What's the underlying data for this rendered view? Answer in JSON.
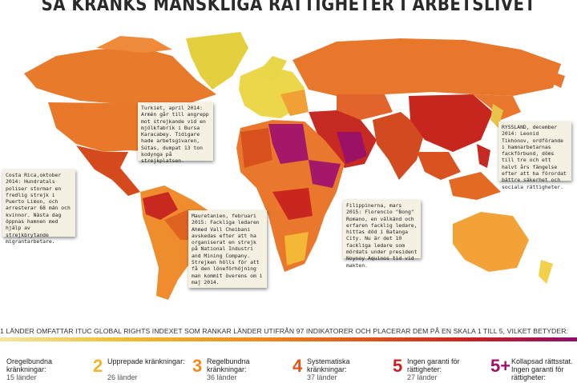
{
  "header": {
    "title": "SÅ KRÄNKS MÄNSKLIGA RÄTTIGHETER I ARBETSLIVET"
  },
  "annotations": [
    {
      "text": "Turkiet, april 2014: Armén går till angrepp mot strejkande vid en mjölkfabrik i Bursa Karacabey. Tidigare hade arbetsgivaren, Sütas, dumpat 13 ton kodynga på strejkplatsen."
    },
    {
      "text": "Costa Rica,oktober 2014: Hundratals poliser stormar en fredlig strejk i Puerto Limon, och arresterar 68 män och kvinnor. Nästa dag öppnas hamnen med hjälp av strejkbrytande migrantar­betare."
    },
    {
      "text": "Mauretanien, februari 2015: Fackliga ledaren Ahmed Vall Cheibani avskedas efter att ha organiserat en strejk på National Industri and Mining Company. Strejken hölls för att få den löneförhöjning man kommit överens om i maj 2014."
    },
    {
      "text": "Filippinerna, mars 2015: Florencio \"Bong\" Romano, en välkänd och erfaren facklig ledare, hittas död i Batanga City. Nu är det 10 fackliga ledare som mördats under president Noynoy Aquinos tid vid makten."
    },
    {
      "text": "RYSSLAND, december 2014: Leonid Tikhonov, ordförande i hamnarbetarnas fackförbund, döms till tre och ett halvt års fängelse efter att ha förordat bättre säkerhet och sociala rättigheter."
    }
  ],
  "intro": "1 LÄNDER OMFATTAR ITUC GLOBAL RIGHTS INDEXET SOM RANKAR LÄNDER UTIFRÅN 97 INDIKATORER OCH PLACERAR DEM PÅ EN SKALA 1 TILL 5, VILKET BETYDER:",
  "legend": [
    {
      "label": "Oregelbundna kränkningar:",
      "count": "15 länder"
    },
    {
      "number": "2",
      "label": "Upprepade kränkningar:",
      "count": "26 länder"
    },
    {
      "number": "3",
      "label": "Regelbundna kränkningar:",
      "count": "36 länder"
    },
    {
      "number": "4",
      "label": "Systematiska kränkningar:",
      "count": "37 länder"
    },
    {
      "number": "5",
      "label": "Ingen garanti för rättigheter:",
      "count": "27 länder"
    },
    {
      "number": "5+",
      "label": "Kollapsad rättsstat. Ingen garanti för rättigheter:"
    }
  ]
}
